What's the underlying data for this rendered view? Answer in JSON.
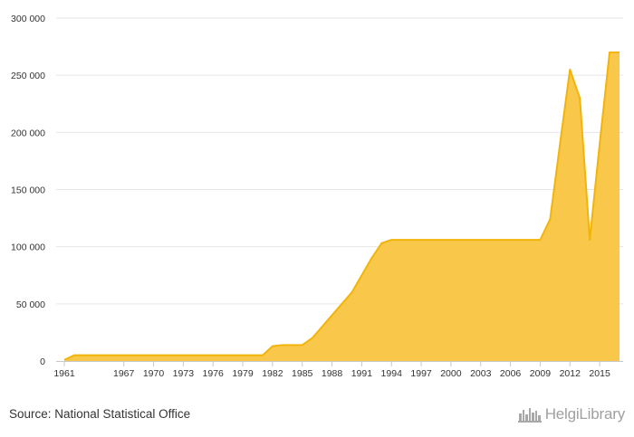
{
  "chart_data": {
    "type": "area",
    "x": [
      1961,
      1962,
      1963,
      1964,
      1965,
      1966,
      1967,
      1968,
      1969,
      1970,
      1971,
      1972,
      1973,
      1974,
      1975,
      1976,
      1977,
      1978,
      1979,
      1980,
      1981,
      1982,
      1983,
      1984,
      1985,
      1986,
      1987,
      1988,
      1989,
      1990,
      1991,
      1992,
      1993,
      1994,
      1995,
      1996,
      1997,
      1998,
      1999,
      2000,
      2001,
      2002,
      2003,
      2004,
      2005,
      2006,
      2007,
      2008,
      2009,
      2010,
      2011,
      2012,
      2013,
      2014,
      2015,
      2016,
      2017
    ],
    "values": [
      1000,
      5000,
      5000,
      5000,
      5000,
      5000,
      5000,
      5000,
      5000,
      5000,
      5000,
      5000,
      5000,
      5000,
      5000,
      5000,
      5000,
      5000,
      5000,
      5000,
      5000,
      13000,
      14000,
      14000,
      14000,
      20000,
      30000,
      40000,
      50000,
      60000,
      75000,
      90000,
      103000,
      106000,
      106000,
      106000,
      106000,
      106000,
      106000,
      106000,
      106000,
      106000,
      106000,
      106000,
      106000,
      106000,
      106000,
      106000,
      106000,
      124000,
      190000,
      255000,
      230000,
      106000,
      190000,
      270000,
      270000
    ],
    "x_ticks": [
      "1961",
      "1967",
      "1970",
      "1973",
      "1976",
      "1979",
      "1982",
      "1985",
      "1988",
      "1991",
      "1994",
      "1997",
      "2000",
      "2003",
      "2006",
      "2009",
      "2012",
      "2015"
    ],
    "y_ticks": [
      "0",
      "50 000",
      "100 000",
      "150 000",
      "200 000",
      "250 000",
      "300 000"
    ],
    "ylim": [
      0,
      300000
    ],
    "xlim": [
      1961,
      2017
    ],
    "grid": true,
    "colors": {
      "fill": "#f9c440",
      "line": "#f2b40a",
      "grid": "#e6e6e6",
      "axis": "#c8c8c8"
    }
  },
  "footer": {
    "source": "Source: National Statistical Office",
    "logo_text": "HelgiLibrary",
    "logo_icon": "city-skyline-icon"
  }
}
